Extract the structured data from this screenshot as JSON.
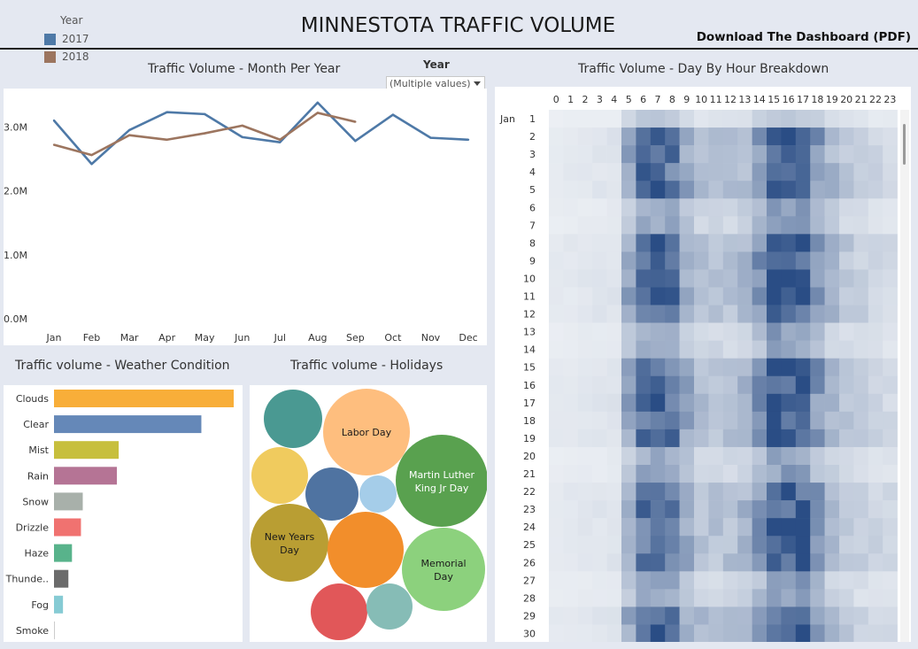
{
  "dashboard": {
    "title": "MINNESTOTA TRAFFIC VOLUME",
    "download_label": "Download The Dashboard (PDF)",
    "legend": {
      "title": "Year",
      "items": [
        {
          "label": "2017",
          "color": "#4e79a7"
        },
        {
          "label": "2018",
          "color": "#9c755f"
        }
      ]
    },
    "year_filter": {
      "label": "Year",
      "value": "(Multiple values)",
      "icon": "dropdown-arrow-icon"
    }
  },
  "chart_data": [
    {
      "type": "line",
      "title": "Traffic Volume - Month Per Year",
      "xlabel": "",
      "ylabel": "",
      "categories": [
        "Jan",
        "Feb",
        "Mar",
        "Apr",
        "May",
        "Jun",
        "Jul",
        "Aug",
        "Sep",
        "Oct",
        "Nov",
        "Dec"
      ],
      "yticks": [
        "0.0M",
        "1.0M",
        "2.0M",
        "3.0M"
      ],
      "ylim": [
        0,
        3600000
      ],
      "grid": false,
      "series": [
        {
          "name": "2017",
          "color": "#4e79a7",
          "values": [
            3100000,
            2420000,
            2950000,
            3230000,
            3200000,
            2840000,
            2760000,
            3380000,
            2780000,
            3190000,
            2830000,
            2800000
          ]
        },
        {
          "name": "2018",
          "color": "#9c755f",
          "values": [
            2720000,
            2560000,
            2870000,
            2800000,
            2900000,
            3020000,
            2800000,
            3220000,
            3080000,
            null,
            null,
            null
          ]
        }
      ]
    },
    {
      "type": "bar",
      "title": "Traffic volume - Weather Condition",
      "orientation": "horizontal",
      "categories": [
        "Clouds",
        "Clear",
        "Mist",
        "Rain",
        "Snow",
        "Drizzle",
        "Haze",
        "Thunde..",
        "Fog",
        "Smoke"
      ],
      "values": [
        100,
        82,
        36,
        35,
        16,
        15,
        10,
        8,
        5,
        0.5
      ],
      "colors": [
        "#f8ae39",
        "#6588b8",
        "#c7bf3d",
        "#b57495",
        "#a8b0aa",
        "#f07270",
        "#58b38b",
        "#6b6b6b",
        "#86cbd4",
        "#cccccc"
      ]
    },
    {
      "type": "bubble",
      "title": "Traffic volume - Holidays",
      "items": [
        {
          "label": "",
          "value": 30,
          "color": "#4a9992"
        },
        {
          "label": "Labor Day",
          "value": 70,
          "color": "#febe7e"
        },
        {
          "label": "",
          "value": 28,
          "color": "#f0cb5e"
        },
        {
          "label": "",
          "value": 24,
          "color": "#4f73a1"
        },
        {
          "label": "",
          "value": 12,
          "color": "#a5cde9"
        },
        {
          "label": "Martin Luther King Jr Day",
          "value": 76,
          "color": "#59a14f"
        },
        {
          "label": "New Years Day",
          "value": 56,
          "color": "#b99e33"
        },
        {
          "label": "",
          "value": 55,
          "color": "#f28e2b"
        },
        {
          "label": "Memorial Day",
          "value": 62,
          "color": "#8cd17d"
        },
        {
          "label": "",
          "value": 28,
          "color": "#e15759"
        },
        {
          "label": "",
          "value": 18,
          "color": "#86bcb6"
        }
      ]
    },
    {
      "type": "heatmap",
      "title": "Traffic Volume - Day By Hour Breakdown",
      "x": [
        "0",
        "1",
        "2",
        "3",
        "4",
        "5",
        "6",
        "7",
        "8",
        "9",
        "10",
        "11",
        "12",
        "13",
        "14",
        "15",
        "16",
        "17",
        "18",
        "19",
        "20",
        "21",
        "22",
        "23"
      ],
      "month_label": "Jan",
      "y": [
        "1",
        "2",
        "3",
        "4",
        "5",
        "6",
        "7",
        "8",
        "9",
        "10",
        "11",
        "12",
        "13",
        "14",
        "15",
        "16",
        "17",
        "18",
        "19",
        "20",
        "21",
        "22",
        "23",
        "24",
        "25",
        "26",
        "27",
        "28",
        "29",
        "30"
      ],
      "color_low": "#eef1f5",
      "color_high": "#2a4d85"
    }
  ]
}
